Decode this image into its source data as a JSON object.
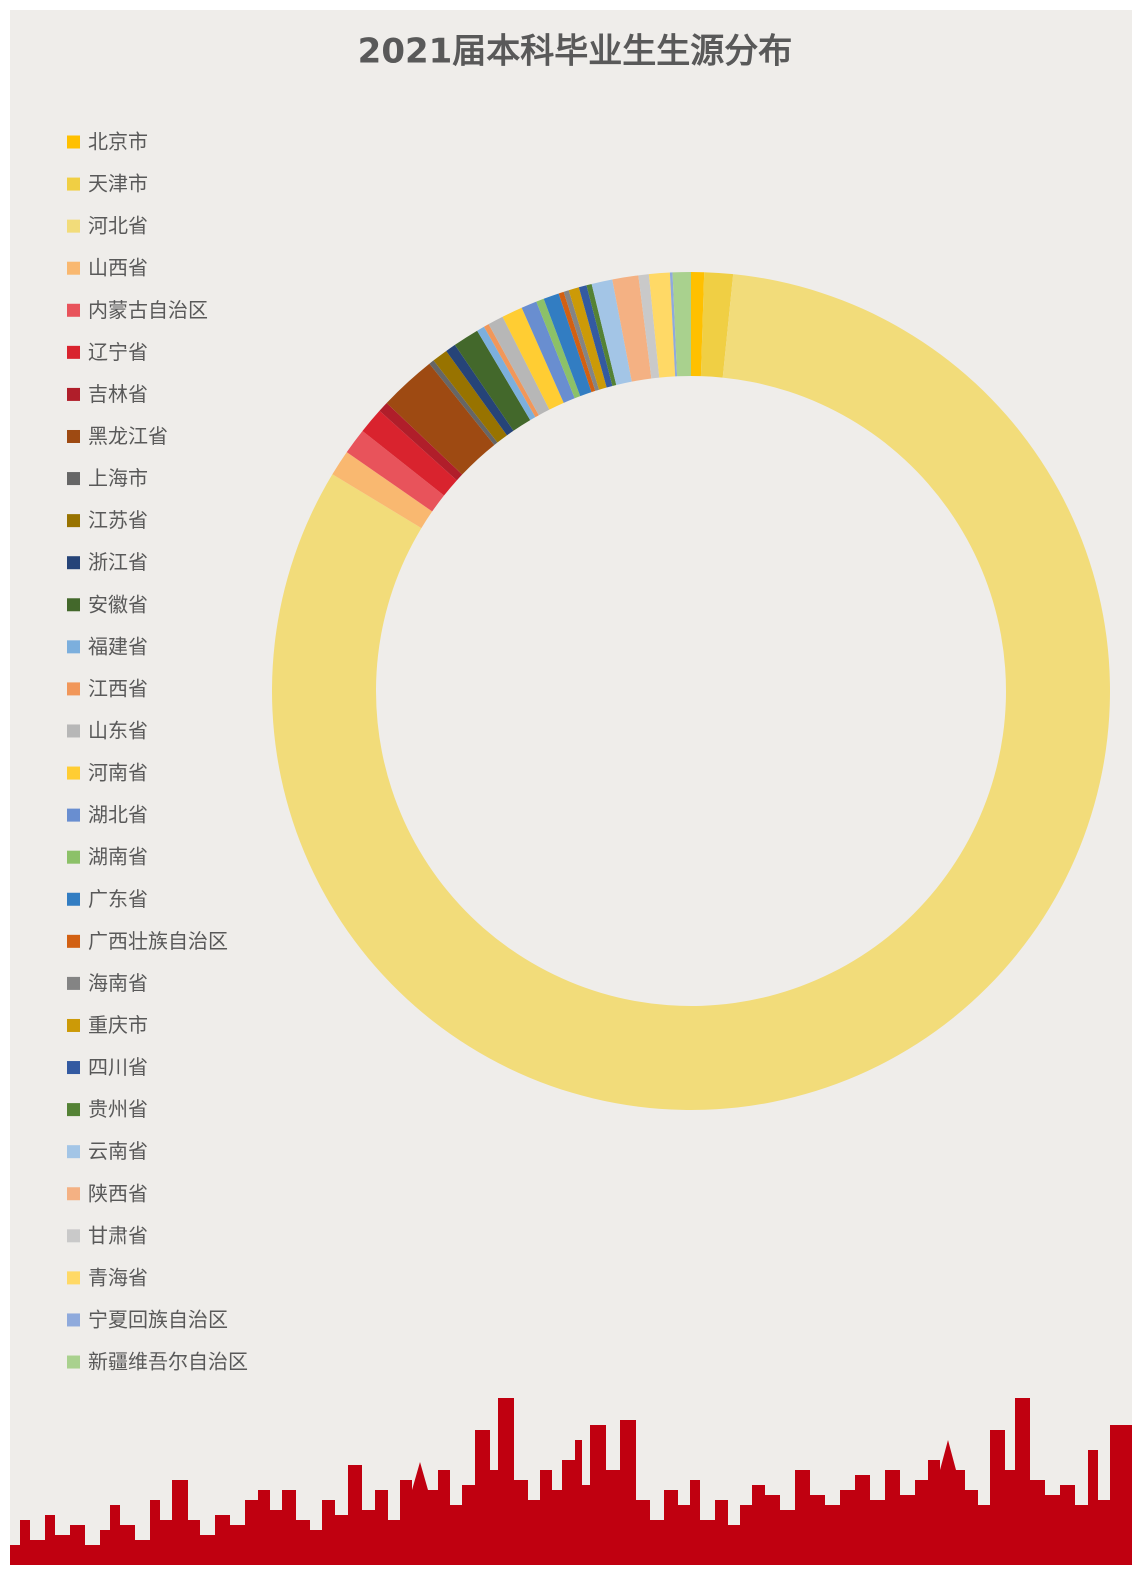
{
  "chart_data": {
    "type": "doughnut",
    "title": "2021届本科毕业生生源分布",
    "categories": [
      "北京市",
      "天津市",
      "河北省",
      "山西省",
      "内蒙古自治区",
      "辽宁省",
      "吉林省",
      "黑龙江省",
      "上海市",
      "江苏省",
      "浙江省",
      "安徽省",
      "福建省",
      "江西省",
      "山东省",
      "河南省",
      "湖北省",
      "湖南省",
      "广东省",
      "广西壮族自治区",
      "海南省",
      "重庆市",
      "四川省",
      "贵州省",
      "云南省",
      "陕西省",
      "甘肃省",
      "青海省",
      "宁夏回族自治区",
      "新疆维吾尔自治区"
    ],
    "values": [
      0.5,
      1.1,
      81.8,
      1.0,
      1.0,
      1.0,
      0.4,
      2.2,
      0.2,
      0.6,
      0.4,
      1.0,
      0.3,
      0.2,
      0.6,
      0.8,
      0.6,
      0.3,
      0.6,
      0.2,
      0.2,
      0.4,
      0.3,
      0.2,
      0.8,
      1.0,
      0.4,
      0.8,
      0.1,
      0.7
    ],
    "colors": [
      "#ffc000",
      "#f0cf44",
      "#f2dc7a",
      "#f9b870",
      "#e8535b",
      "#d9232e",
      "#b01e2a",
      "#9e4a12",
      "#666666",
      "#987300",
      "#264478",
      "#43682b",
      "#7cafdd",
      "#f1975a",
      "#b7b7b7",
      "#ffcd33",
      "#698ed0",
      "#8cc168",
      "#327dc2",
      "#d26012",
      "#848484",
      "#cc9a07",
      "#335aa1",
      "#548235",
      "#a3c5e6",
      "#f4b183",
      "#c9c9c9",
      "#ffd966",
      "#8faadc",
      "#a9d18e"
    ],
    "legend": "left"
  }
}
